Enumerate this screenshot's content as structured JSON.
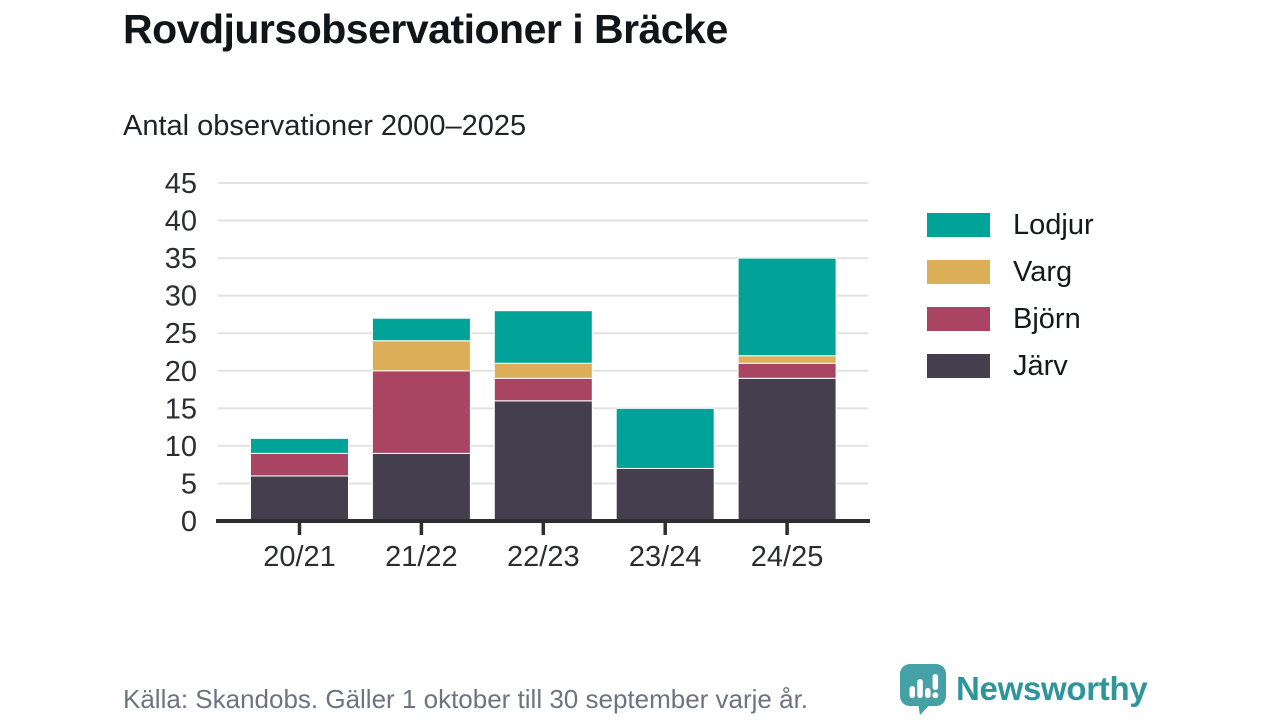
{
  "header": {
    "title": "Rovdjursobservationer i Bräcke",
    "subtitle": "Antal observationer 2000–2025"
  },
  "chart_data": {
    "type": "bar",
    "stacked": true,
    "title": "Rovdjursobservationer i Bräcke",
    "subtitle": "Antal observationer 2000–2025",
    "categories": [
      "20/21",
      "21/22",
      "22/23",
      "23/24",
      "24/25"
    ],
    "series": [
      {
        "name": "Järv",
        "color": "#433f4e",
        "values": [
          6,
          9,
          16,
          7,
          19
        ]
      },
      {
        "name": "Björn",
        "color": "#a94563",
        "values": [
          3,
          11,
          3,
          0,
          2
        ]
      },
      {
        "name": "Varg",
        "color": "#ddae58",
        "values": [
          0,
          4,
          2,
          0,
          1
        ]
      },
      {
        "name": "Lodjur",
        "color": "#00a398",
        "values": [
          2,
          3,
          7,
          8,
          13
        ]
      }
    ],
    "totals": [
      11,
      27,
      28,
      15,
      35
    ],
    "yticks": [
      0,
      5,
      10,
      15,
      20,
      25,
      30,
      35,
      40,
      45
    ],
    "ylim": [
      0,
      45
    ],
    "xlabel": "",
    "ylabel": "",
    "grid": "horizontal",
    "gridline_color": "#e2e2e2",
    "axis_color": "#2e2e2e",
    "legend_position": "right",
    "legend_order": [
      "Lodjur",
      "Varg",
      "Björn",
      "Järv"
    ]
  },
  "footer": {
    "source": "Källa: Skandobs. Gäller 1 oktober till 30 september varje år."
  },
  "branding": {
    "name": "Newsworthy",
    "icon": "bar-chart-speech-bubble-icon",
    "text_color": "#2e959b",
    "icon_color": "#46a1a7"
  }
}
